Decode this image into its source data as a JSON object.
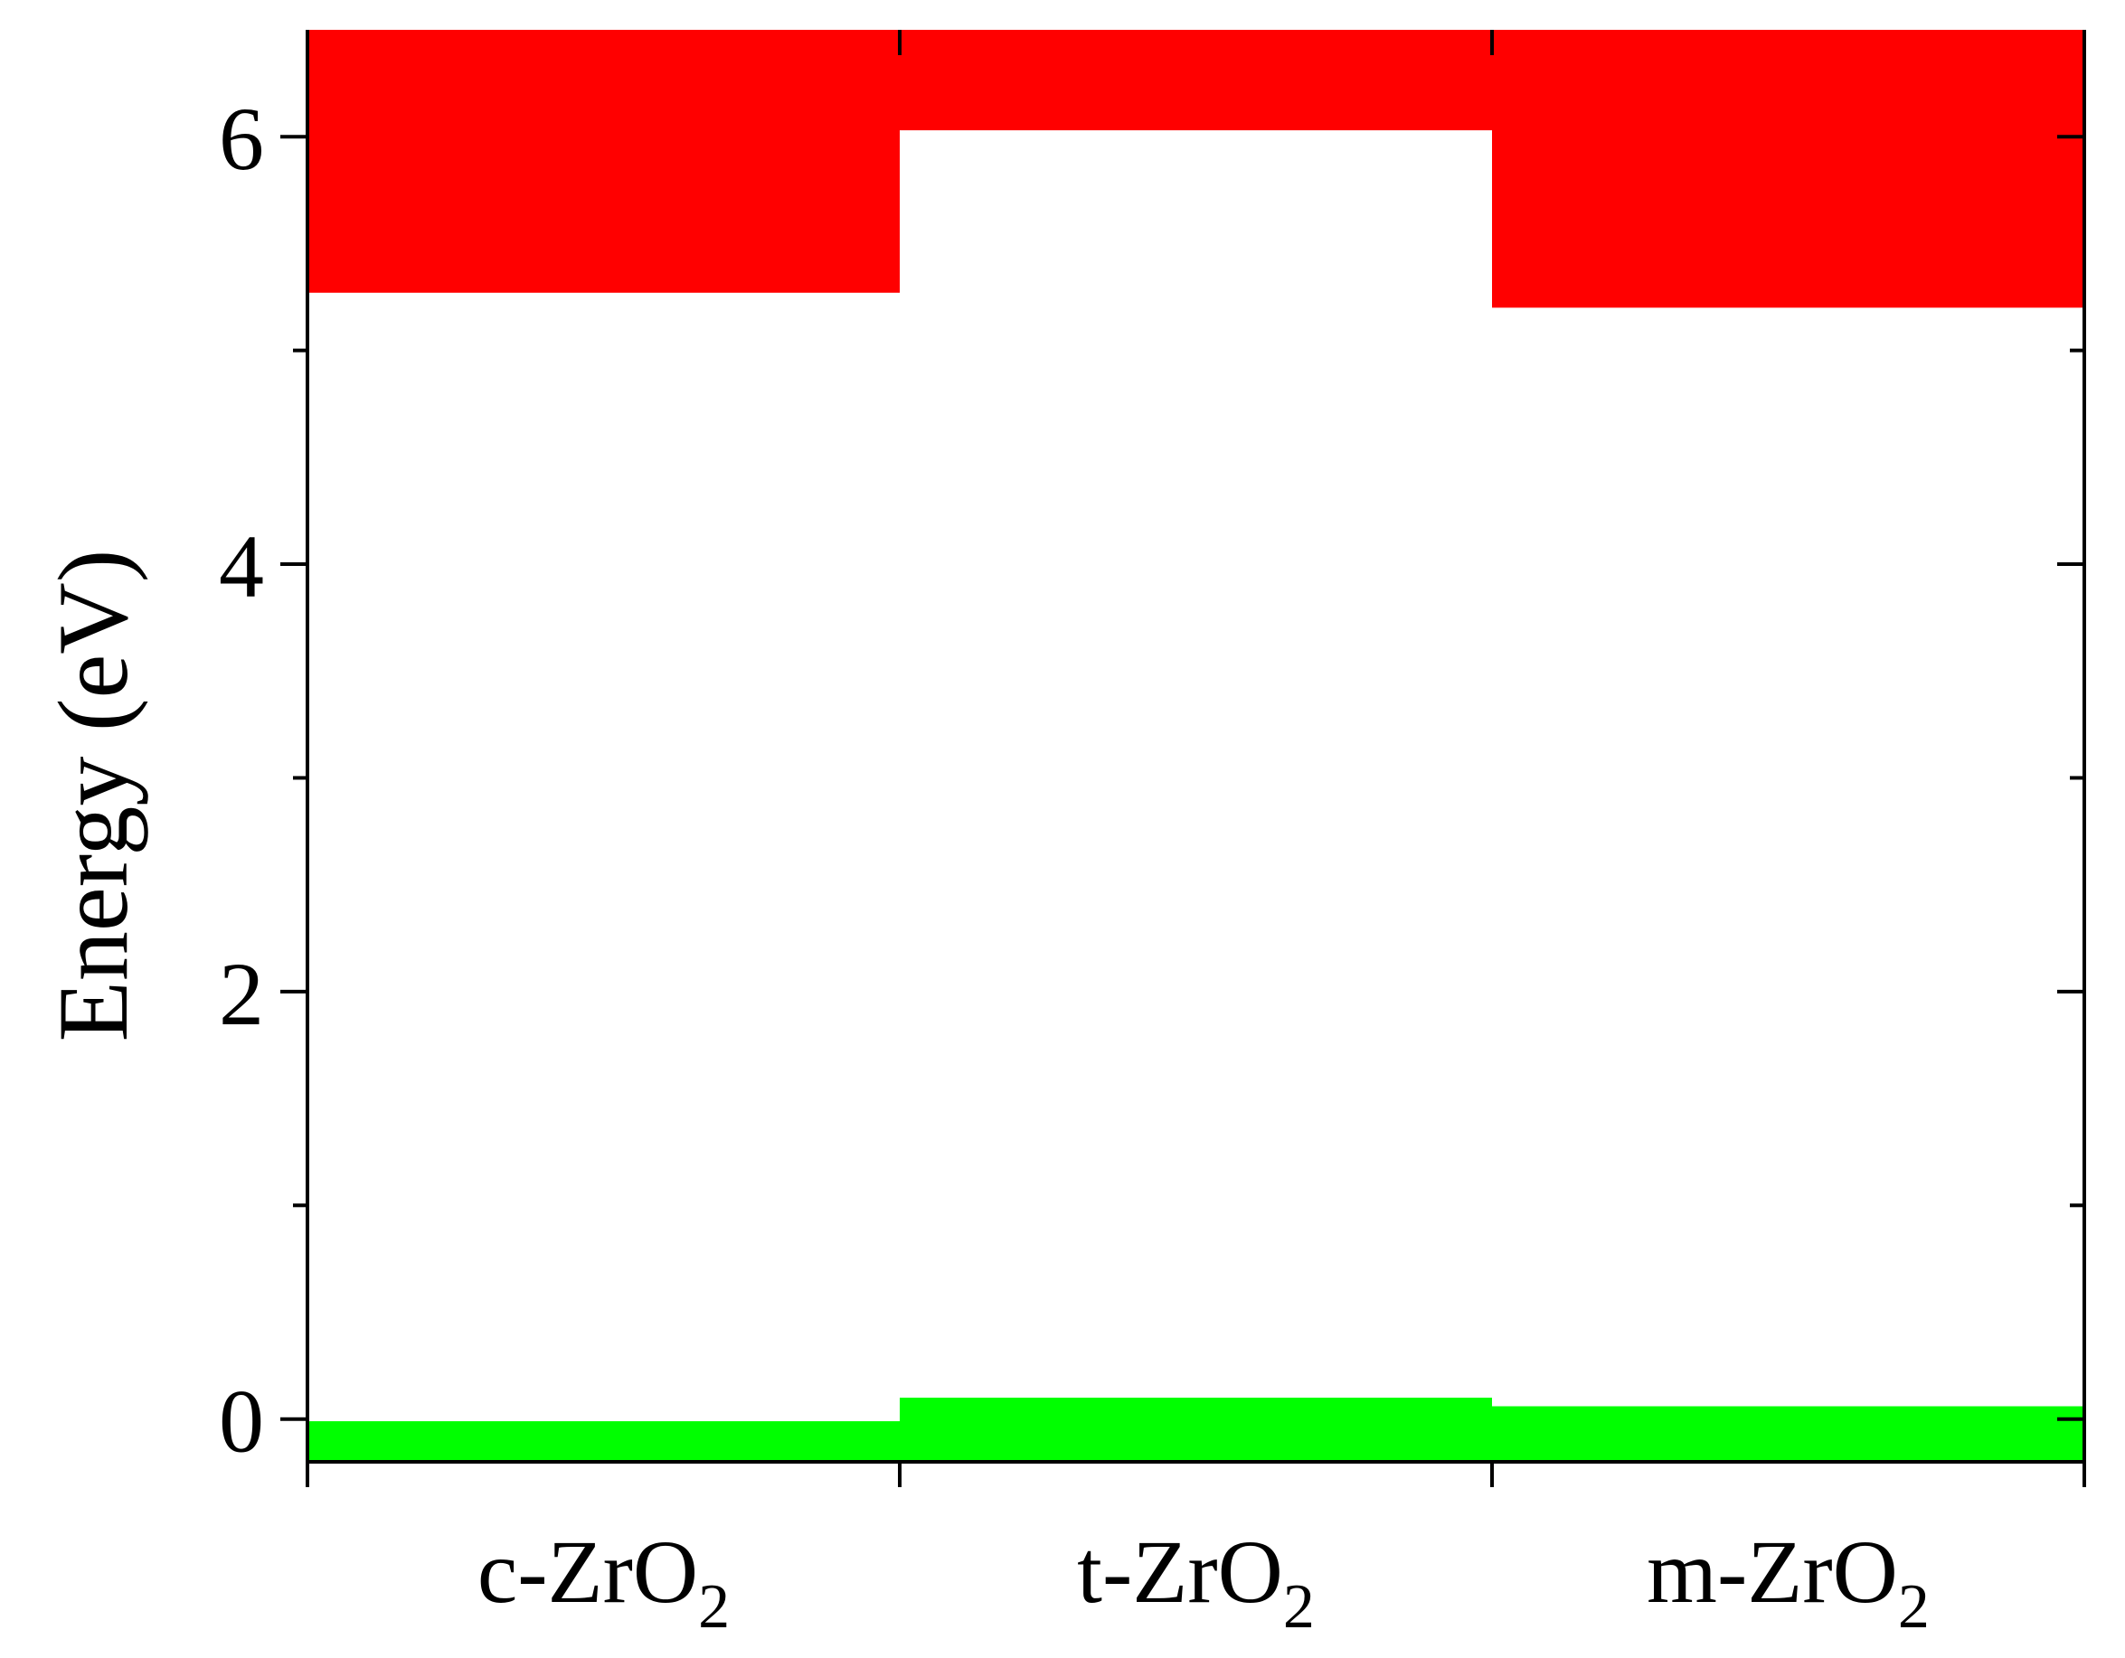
{
  "chart_data": {
    "type": "bar",
    "categories": [
      {
        "prefix": "c-ZrO",
        "subscript": "2"
      },
      {
        "prefix": "t-ZrO",
        "subscript": "2"
      },
      {
        "prefix": "m-ZrO",
        "subscript": "2"
      }
    ],
    "conduction_band_min": [
      5.27,
      6.03,
      5.2
    ],
    "valence_band_max": [
      -0.01,
      0.1,
      0.06
    ],
    "ylabel": "Energy (eV)",
    "ylim": [
      -0.2,
      6.5
    ],
    "yticks": [
      0,
      2,
      4,
      6
    ],
    "yticks_minor": [
      1,
      3,
      5
    ],
    "ytick_labels": [
      "0",
      "2",
      "4",
      "6"
    ],
    "grid": false,
    "colors": {
      "conduction_band": "#ff0000",
      "valence_band": "#00ff00",
      "axis": "#000000"
    }
  }
}
